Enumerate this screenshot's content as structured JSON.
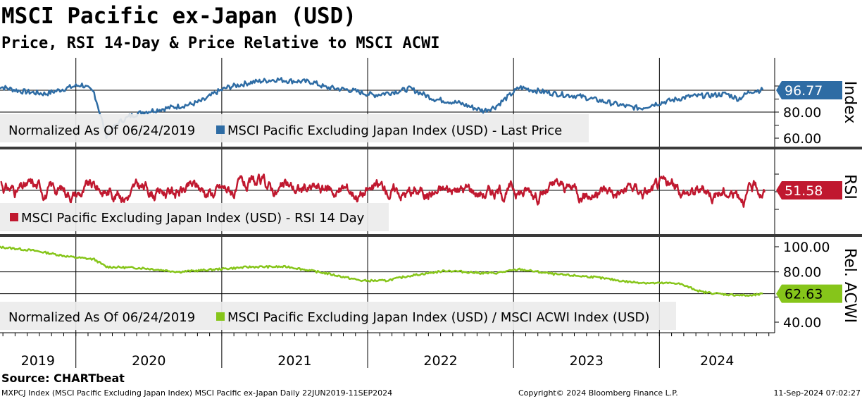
{
  "title": "MSCI Pacific ex-Japan (USD)",
  "subtitle": "Price, RSI 14-Day & Price Relative to MSCI ACWI",
  "source": "Source: CHARTbeat",
  "footer": {
    "left": "MXPCJ Index (MSCI Pacific Excluding Japan Index) MSCI Pacific ex-Japan  Daily 22JUN2019-11SEP2024",
    "center": "Copyright© 2024 Bloomberg Finance L.P.",
    "right": "11-Sep-2024 07:02:27"
  },
  "colors": {
    "price": "#2e6ca4",
    "rsi": "#c0182f",
    "relative": "#86c51a",
    "legend_bg": "#ececec",
    "grid": "#000000"
  },
  "chart_data": [
    {
      "type": "line",
      "panel": "price",
      "axis_title": "Index",
      "legend_note": "Normalized As Of 06/24/2019",
      "series": [
        {
          "name": "MSCI Pacific Excluding Japan Index (USD) - Last Price"
        }
      ],
      "x": [
        "2019-06",
        "2019-08",
        "2019-10",
        "2019-12",
        "2020-01",
        "2020-02",
        "2020-03",
        "2020-04",
        "2020-05",
        "2020-06",
        "2020-08",
        "2020-10",
        "2020-11",
        "2020-12",
        "2021-01",
        "2021-03",
        "2021-05",
        "2021-06",
        "2021-08",
        "2021-09",
        "2021-11",
        "2022-01",
        "2022-03",
        "2022-04",
        "2022-06",
        "2022-08",
        "2022-10",
        "2022-11",
        "2023-01",
        "2023-02",
        "2023-04",
        "2023-06",
        "2023-08",
        "2023-10",
        "2023-11",
        "2023-12",
        "2024-01",
        "2024-03",
        "2024-05",
        "2024-06",
        "2024-07",
        "2024-08",
        "2024-09"
      ],
      "values": [
        100,
        96,
        94,
        99,
        101,
        95,
        62,
        72,
        77,
        80,
        83,
        86,
        89,
        95,
        99,
        103,
        105,
        104,
        103,
        99,
        97,
        93,
        96,
        98,
        90,
        87,
        81,
        84,
        99,
        97,
        94,
        92,
        88,
        84,
        83,
        86,
        88,
        92,
        93,
        94,
        90,
        96,
        97
      ],
      "last_value": "96.77",
      "ticks": [
        "60.00",
        "80.00"
      ],
      "ylim": [
        60,
        110
      ]
    },
    {
      "type": "line",
      "panel": "rsi",
      "axis_title": "RSI",
      "series": [
        {
          "name": "MSCI Pacific Excluding Japan Index (USD) - RSI 14 Day"
        }
      ],
      "range": [
        10,
        90
      ],
      "last_value": "51.58"
    },
    {
      "type": "line",
      "panel": "relative",
      "axis_title": "Rel. ACWI",
      "legend_note": "Normalized As Of 06/24/2019",
      "series": [
        {
          "name": "MSCI Pacific Excluding Japan Index (USD) / MSCI ACWI Index (USD)"
        }
      ],
      "x": [
        "2019-06",
        "2019-09",
        "2019-12",
        "2020-02",
        "2020-03",
        "2020-06",
        "2020-09",
        "2020-12",
        "2021-03",
        "2021-06",
        "2021-09",
        "2021-12",
        "2022-02",
        "2022-04",
        "2022-07",
        "2022-10",
        "2022-11",
        "2023-01",
        "2023-04",
        "2023-07",
        "2023-10",
        "2023-12",
        "2024-02",
        "2024-04",
        "2024-06",
        "2024-08",
        "2024-09"
      ],
      "values": [
        100,
        97,
        92,
        90,
        84,
        83,
        80,
        82,
        84,
        84,
        79,
        73,
        73,
        77,
        81,
        79,
        79,
        82,
        78,
        76,
        72,
        71,
        71,
        64,
        62,
        61,
        62.6
      ],
      "last_value": "62.63",
      "ticks": [
        "40.00",
        "80.00",
        "100.00"
      ],
      "ylim": [
        33,
        104
      ]
    }
  ],
  "x_axis": {
    "years": [
      "2019",
      "2020",
      "2021",
      "2022",
      "2023",
      "2024"
    ]
  }
}
